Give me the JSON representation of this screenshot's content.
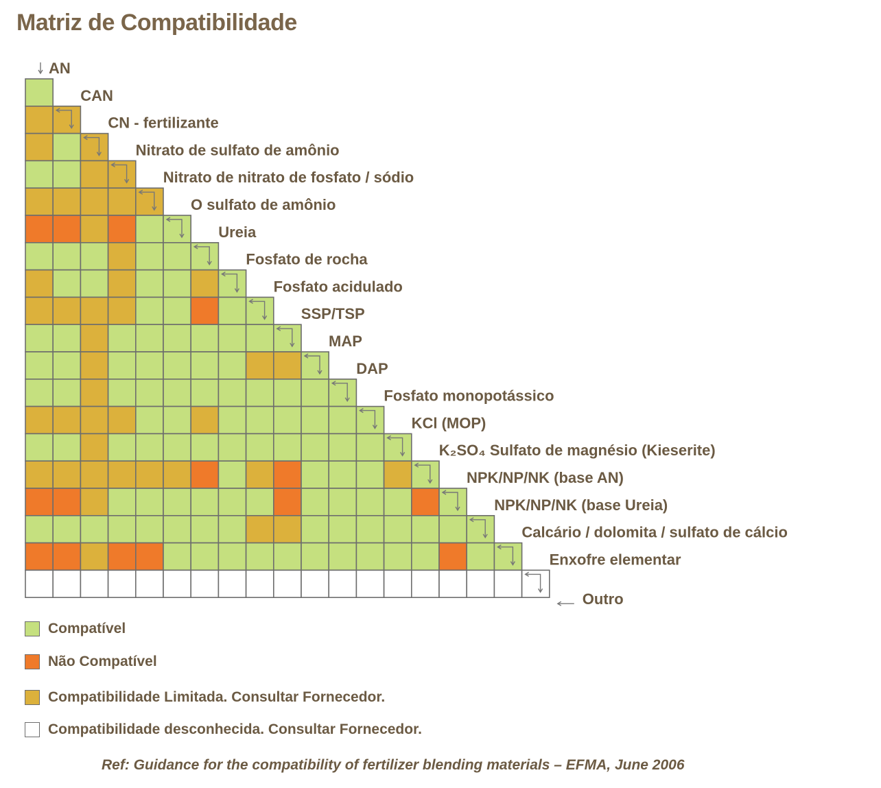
{
  "title": "Matriz de Compatibilidade",
  "colors": {
    "compatible": "#c5e07f",
    "incompatible": "#ef7a2a",
    "limited": "#dcb13c",
    "unknown": "#ffffff",
    "cell_border": "#6d6d6d",
    "text": "#6b5a43"
  },
  "chart_data": {
    "type": "heatmap",
    "products": [
      "AN",
      "CAN",
      "CN - fertilizante",
      "Nitrato de sulfato de amônio",
      "Nitrato de nitrato de fosfato / sódio",
      "O sulfato de amônio",
      "Ureia",
      "Fosfato de rocha",
      "Fosfato acidulado",
      "SSP/TSP",
      "MAP",
      "DAP",
      "Fosfato monopotássico",
      "KCl (MOP)",
      "K₂SO₄ Sulfato de magnésio (Kieserite)",
      "NPK/NP/NK (base AN)",
      "NPK/NP/NK (base Ureia)",
      "Calcário / dolomita / sulfato de cálcio",
      "Enxofre elementar",
      "Outro"
    ],
    "code_key": {
      "C": "compatible",
      "N": "incompatible",
      "L": "limited",
      "U": "unknown"
    },
    "matrix": [
      [
        "C"
      ],
      [
        "L",
        "L"
      ],
      [
        "L",
        "C",
        "L"
      ],
      [
        "C",
        "C",
        "L",
        "L"
      ],
      [
        "L",
        "L",
        "L",
        "L",
        "L"
      ],
      [
        "N",
        "N",
        "L",
        "N",
        "C",
        "C"
      ],
      [
        "C",
        "C",
        "C",
        "L",
        "C",
        "C",
        "C"
      ],
      [
        "L",
        "C",
        "C",
        "L",
        "C",
        "C",
        "L",
        "C"
      ],
      [
        "L",
        "L",
        "L",
        "L",
        "C",
        "C",
        "N",
        "C",
        "C"
      ],
      [
        "C",
        "C",
        "L",
        "C",
        "C",
        "C",
        "C",
        "C",
        "C",
        "C"
      ],
      [
        "C",
        "C",
        "L",
        "C",
        "C",
        "C",
        "C",
        "C",
        "L",
        "L",
        "C"
      ],
      [
        "C",
        "C",
        "L",
        "C",
        "C",
        "C",
        "C",
        "C",
        "C",
        "C",
        "C",
        "C"
      ],
      [
        "L",
        "L",
        "L",
        "L",
        "C",
        "C",
        "L",
        "C",
        "C",
        "C",
        "C",
        "C",
        "C"
      ],
      [
        "C",
        "C",
        "L",
        "C",
        "C",
        "C",
        "C",
        "C",
        "C",
        "C",
        "C",
        "C",
        "C",
        "C"
      ],
      [
        "L",
        "L",
        "L",
        "L",
        "L",
        "L",
        "N",
        "C",
        "L",
        "N",
        "C",
        "C",
        "C",
        "L",
        "C"
      ],
      [
        "N",
        "N",
        "L",
        "C",
        "C",
        "C",
        "C",
        "C",
        "C",
        "N",
        "C",
        "C",
        "C",
        "C",
        "N",
        "C"
      ],
      [
        "C",
        "C",
        "C",
        "C",
        "C",
        "C",
        "C",
        "C",
        "L",
        "L",
        "C",
        "C",
        "C",
        "C",
        "C",
        "C",
        "C"
      ],
      [
        "N",
        "N",
        "L",
        "N",
        "N",
        "C",
        "C",
        "C",
        "C",
        "C",
        "C",
        "C",
        "C",
        "C",
        "C",
        "N",
        "C",
        "C"
      ],
      [
        "U",
        "U",
        "U",
        "U",
        "U",
        "U",
        "U",
        "U",
        "U",
        "U",
        "U",
        "U",
        "U",
        "U",
        "U",
        "U",
        "U",
        "U",
        "U"
      ]
    ]
  },
  "legend": [
    {
      "key": "compatible",
      "label": "Compatível"
    },
    {
      "key": "incompatible",
      "label": "Não Compatível"
    },
    {
      "key": "limited",
      "label": "Compatibilidade Limitada. Consultar Fornecedor."
    },
    {
      "key": "unknown",
      "label": "Compatibilidade desconhecida. Consultar Fornecedor."
    }
  ],
  "reference": "Ref: Guidance for the compatibility of fertilizer blending materials – EFMA, June 2006"
}
